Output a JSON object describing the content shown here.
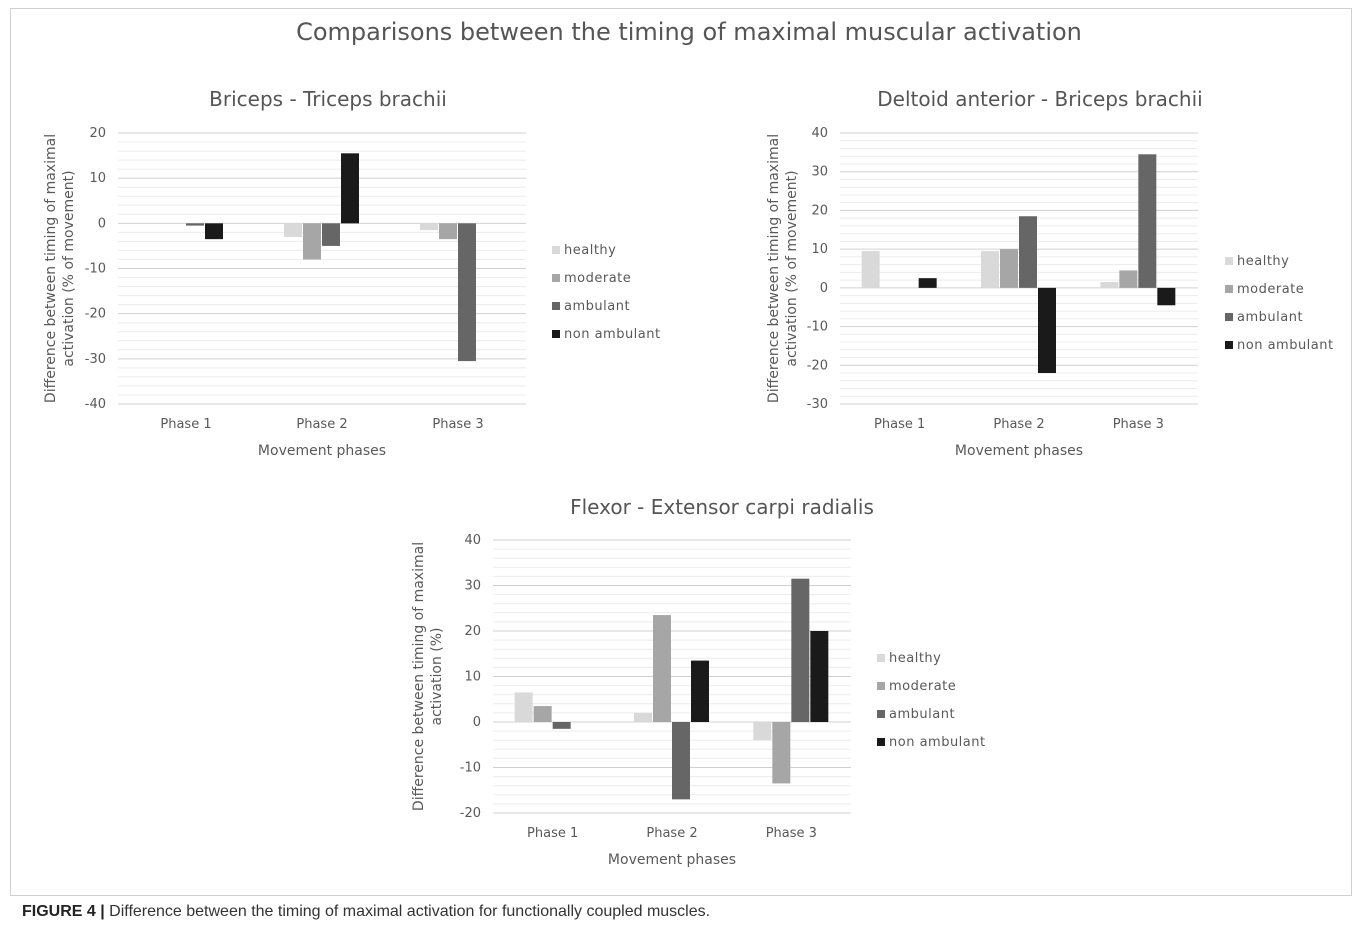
{
  "main_title": "Comparisons between the timing of maximal muscular activation",
  "caption": {
    "label": "FIGURE 4 |",
    "text": "Difference between the timing of maximal activation for functionally coupled muscles."
  },
  "colors": {
    "healthy": "#d9d9d9",
    "moderate": "#a6a6a6",
    "ambulant": "#666666",
    "non ambulant": "#1a1a1a",
    "grid": "#d9d9d9"
  },
  "chart_data": [
    {
      "type": "bar",
      "title": "Briceps - Triceps brachii",
      "xlabel": "Movement phases",
      "ylabel_lines": [
        "Difference between timing of maximal",
        "activation  (% of movement)"
      ],
      "ylim": [
        -40,
        20
      ],
      "yticks": [
        20,
        10,
        0,
        -10,
        -20,
        -30,
        -40
      ],
      "categories": [
        "Phase 1",
        "Phase 2",
        "Phase 3"
      ],
      "legend_position": "right",
      "series": [
        {
          "name": "healthy",
          "values": [
            0,
            -3,
            -1.5
          ]
        },
        {
          "name": "moderate",
          "values": [
            0,
            -8,
            -3.5
          ]
        },
        {
          "name": "ambulant",
          "values": [
            -0.5,
            -5,
            -30.5
          ]
        },
        {
          "name": "non ambulant",
          "values": [
            -3.5,
            15.5,
            0
          ]
        }
      ]
    },
    {
      "type": "bar",
      "title": "Deltoid anterior - Briceps brachii",
      "xlabel": "Movement phases",
      "ylabel_lines": [
        "Difference between timing of maximal",
        "activation  (% of movement)"
      ],
      "ylim": [
        -30,
        40
      ],
      "yticks": [
        40,
        30,
        20,
        10,
        0,
        -10,
        -20,
        -30
      ],
      "categories": [
        "Phase 1",
        "Phase 2",
        "Phase 3"
      ],
      "legend_position": "right",
      "series": [
        {
          "name": "healthy",
          "values": [
            9.5,
            9.5,
            1.5
          ]
        },
        {
          "name": "moderate",
          "values": [
            0,
            10,
            4.5
          ]
        },
        {
          "name": "ambulant",
          "values": [
            0,
            18.5,
            34.5
          ]
        },
        {
          "name": "non ambulant",
          "values": [
            2.5,
            -22,
            -4.5
          ]
        }
      ]
    },
    {
      "type": "bar",
      "title": "Flexor - Extensor carpi radialis",
      "xlabel": "Movement phases",
      "ylabel_lines": [
        "Difference between timing of maximal",
        "activation (%)"
      ],
      "ylim": [
        -20,
        40
      ],
      "yticks": [
        40,
        30,
        20,
        10,
        0,
        -10,
        -20
      ],
      "categories": [
        "Phase 1",
        "Phase 2",
        "Phase 3"
      ],
      "legend_position": "right",
      "series": [
        {
          "name": "healthy",
          "values": [
            6.5,
            2,
            -4
          ]
        },
        {
          "name": "moderate",
          "values": [
            3.5,
            23.5,
            -13.5
          ]
        },
        {
          "name": "ambulant",
          "values": [
            -1.5,
            -17,
            31.5
          ]
        },
        {
          "name": "non ambulant",
          "values": [
            0,
            13.5,
            20
          ]
        }
      ]
    }
  ]
}
